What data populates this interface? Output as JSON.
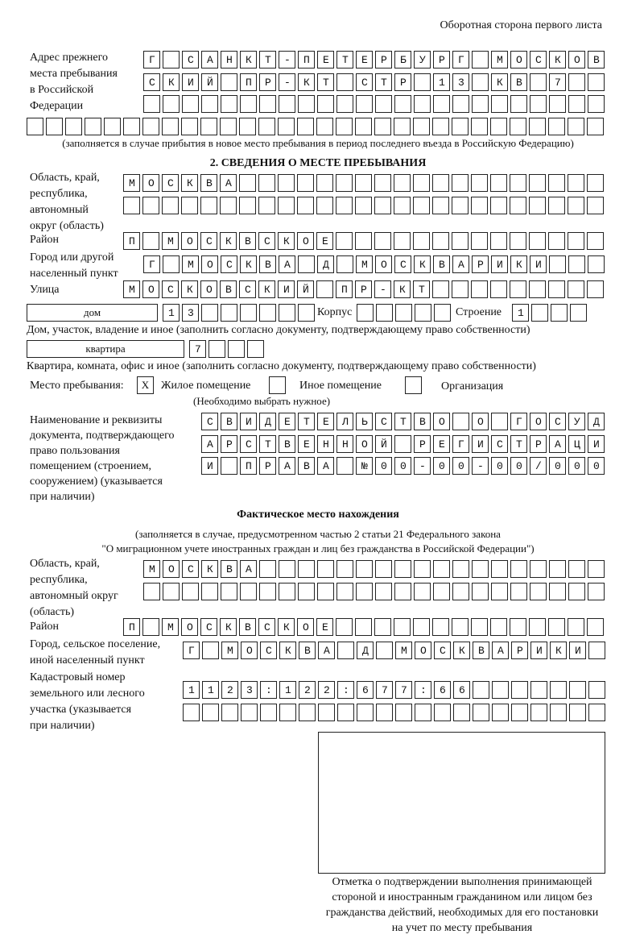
{
  "header": "Оборотная сторона первого листа",
  "prev_address": {
    "label": [
      "Адрес прежнего",
      "места пребывания",
      "в Российской",
      "Федерации"
    ],
    "rows": [
      "Г САНКТ-ПЕТЕРБУРГ МОСКОВ",
      "СКИЙ ПР-КТ СТР 13 КВ 7  ",
      "                        ",
      "                              "
    ],
    "note": "(заполняется в случае прибытия в новое место пребывания в период последнего въезда в Российскую Федерацию)"
  },
  "section2": {
    "title": "2. СВЕДЕНИЯ О МЕСТЕ ПРЕБЫВАНИЯ",
    "region": {
      "label": [
        "Область, край,",
        "республика,",
        "автономный",
        "округ (область)"
      ],
      "rows": [
        "МОСКВА                   ",
        "                         "
      ]
    },
    "district": {
      "label": "Район",
      "row": "П МОСКВСКОЕ              "
    },
    "city": {
      "label": [
        "Город или другой",
        "населенный пункт"
      ],
      "row": "Г МОСКВА Д МОСКВАРИКИ   "
    },
    "street": {
      "label": "Улица",
      "row": "МОСКОВСКИЙ ПР-КТ         "
    },
    "house": {
      "type": "дом",
      "number": "13      ",
      "korpus_label": "Корпус",
      "korpus": "     ",
      "stroenie_label": "Строение",
      "stroenie": "1   ",
      "note": "Дом, участок, владение и иное (заполнить согласно документу, подтверждающему право собственности)"
    },
    "flat": {
      "type": "квартира",
      "number": "7   ",
      "note": "Квартира, комната, офис и иное (заполнить согласно документу, подтверждающему право собственности)"
    },
    "stay": {
      "label": "Место пребывания:",
      "options": [
        {
          "label": "Жилое помещение",
          "mark": "X"
        },
        {
          "label": "Иное помещение",
          "mark": ""
        },
        {
          "label": "Организация",
          "mark": ""
        }
      ],
      "note": "(Необходимо выбрать нужное)"
    },
    "document": {
      "label": [
        "Наименование и реквизиты",
        "документа, подтверждающего",
        "право пользования",
        "помещением (строением,",
        "сооружением) (указывается",
        "при наличии)"
      ],
      "rows": [
        "СВИДЕТЕЛЬСТВО О ГОСУД",
        "АРСТВЕННОЙ РЕГИСТРАЦИ",
        "И ПРАВА №00-00-00/000"
      ]
    }
  },
  "actual": {
    "title": "Фактическое место нахождения",
    "note": [
      "(заполняется в случае, предусмотренном частью 2 статьи 21 Федерального закона",
      "\"О миграционном учете иностранных граждан и лиц без гражданства в Российской Федерации\")"
    ],
    "region": {
      "label": [
        "Область, край,",
        "республика,",
        "автономный округ",
        "(область)"
      ],
      "rows": [
        "МОСКВА                  ",
        "                        "
      ]
    },
    "district": {
      "label": "Район",
      "row": "П МОСКВСКОЕ              "
    },
    "city": {
      "label": [
        "Город, сельское поселение,",
        "иной населенный пункт"
      ],
      "row": "Г МОСКВА Д МОСКВАРИКИ "
    },
    "cadastral": {
      "label": [
        "Кадастровый номер",
        "земельного или лесного",
        "участка (указывается",
        "при наличии)"
      ],
      "rows": [
        "1123:122:677:66       ",
        "                      "
      ]
    }
  },
  "confirmation": {
    "caption": [
      "Отметка о подтверждении выполнения принимающей",
      "стороной и иностранным гражданином или лицом без",
      "гражданства действий, необходимых для его постановки",
      "на учет по месту пребывания"
    ]
  }
}
